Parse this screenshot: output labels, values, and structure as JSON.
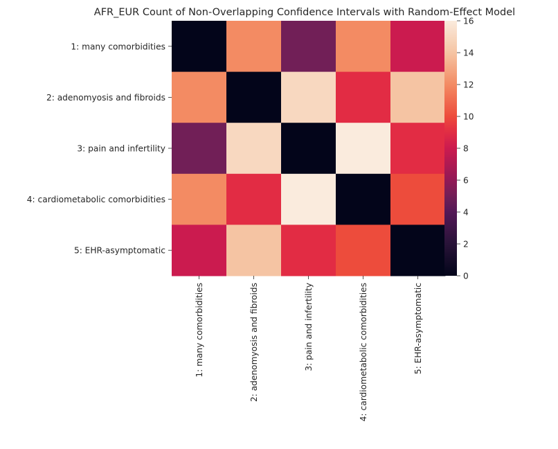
{
  "chart_data": {
    "type": "heatmap",
    "title": "AFR_EUR Count of Non-Overlapping Confidence Intervals with Random-Effect Model",
    "xlabel": "",
    "ylabel": "",
    "row_labels": [
      "1: many comorbidities",
      "2: adenomyosis and fibroids",
      "3: pain and infertility",
      "4: cardiometabolic comorbidities",
      "5: EHR-asymptomatic"
    ],
    "col_labels": [
      "1: many comorbidities",
      "2: adenomyosis and fibroids",
      "3: pain and infertility",
      "4: cardiometabolic comorbidities",
      "5: EHR-asymptomatic"
    ],
    "values": [
      [
        0,
        12,
        5,
        12,
        8
      ],
      [
        12,
        0,
        15,
        9,
        14
      ],
      [
        5,
        15,
        0,
        16,
        9
      ],
      [
        12,
        9,
        16,
        0,
        10
      ],
      [
        8,
        14,
        9,
        10,
        0
      ]
    ],
    "colorbar": {
      "min": 0,
      "max": 16,
      "ticks": [
        0,
        2,
        4,
        6,
        8,
        10,
        12,
        14,
        16
      ],
      "colormap": "rocket"
    },
    "grid": false
  }
}
